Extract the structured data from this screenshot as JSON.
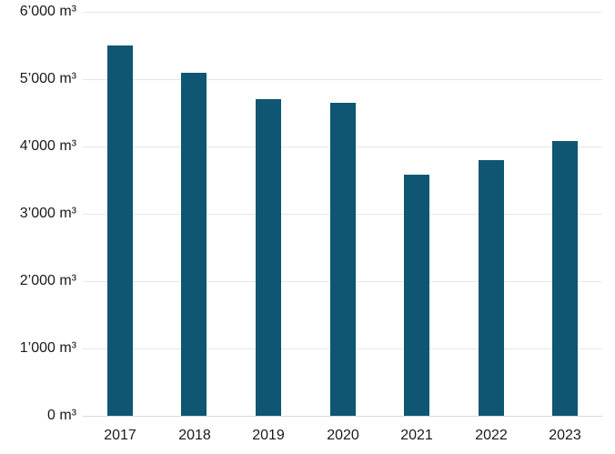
{
  "chart_data": {
    "type": "bar",
    "title": "",
    "xlabel": "",
    "ylabel": "",
    "unit": "m³",
    "categories": [
      "2017",
      "2018",
      "2019",
      "2020",
      "2021",
      "2022",
      "2023"
    ],
    "values": [
      5500,
      5100,
      4700,
      4650,
      3580,
      3800,
      4080
    ],
    "ylim": [
      0,
      6000
    ],
    "grid": true,
    "legend_position": "none",
    "y_ticks": [
      {
        "value": 0,
        "label": "0 m³"
      },
      {
        "value": 1000,
        "label": "1’000 m³"
      },
      {
        "value": 2000,
        "label": "2’000 m³"
      },
      {
        "value": 3000,
        "label": "3’000 m³"
      },
      {
        "value": 4000,
        "label": "4’000 m³"
      },
      {
        "value": 5000,
        "label": "5’000 m³"
      },
      {
        "value": 6000,
        "label": "6’000 m³"
      }
    ],
    "colors": {
      "bar": "#0E5671",
      "gridline": "#E6E6E6",
      "baseline": "#D9D9D9",
      "text": "#1A1A1A",
      "background": "#FFFFFF"
    }
  }
}
